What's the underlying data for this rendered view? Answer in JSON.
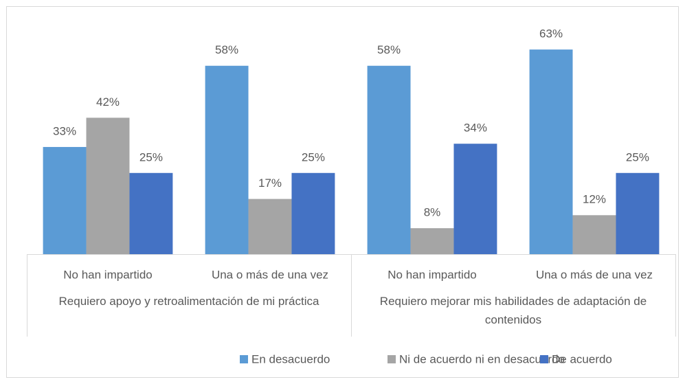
{
  "chart_data": {
    "type": "bar",
    "categories": [
      "No han impartido",
      "Una o más de una vez",
      "No han impartido",
      "Una o más de una vez"
    ],
    "category_groups": [
      "Requiero apoyo y retroalimentación de mi práctica",
      "Requiero mejorar mis habilidades de adaptación de contenidos"
    ],
    "series": [
      {
        "name": "En desacuerdo",
        "color": "#5b9bd5",
        "values": [
          33,
          58,
          58,
          63
        ],
        "value_labels": [
          "33%",
          "58%",
          "58%",
          "63%"
        ]
      },
      {
        "name": "Ni de acuerdo ni en desacuerdo",
        "color": "#a5a5a5",
        "values": [
          42,
          17,
          8,
          12
        ],
        "value_labels": [
          "42%",
          "17%",
          "8%",
          "12%"
        ]
      },
      {
        "name": "De acuerdo",
        "color": "#4472c4",
        "values": [
          25,
          25,
          34,
          25
        ],
        "value_labels": [
          "25%",
          "25%",
          "34%",
          "25%"
        ]
      }
    ],
    "ylim": [
      0,
      70
    ],
    "legend": "bottom"
  }
}
